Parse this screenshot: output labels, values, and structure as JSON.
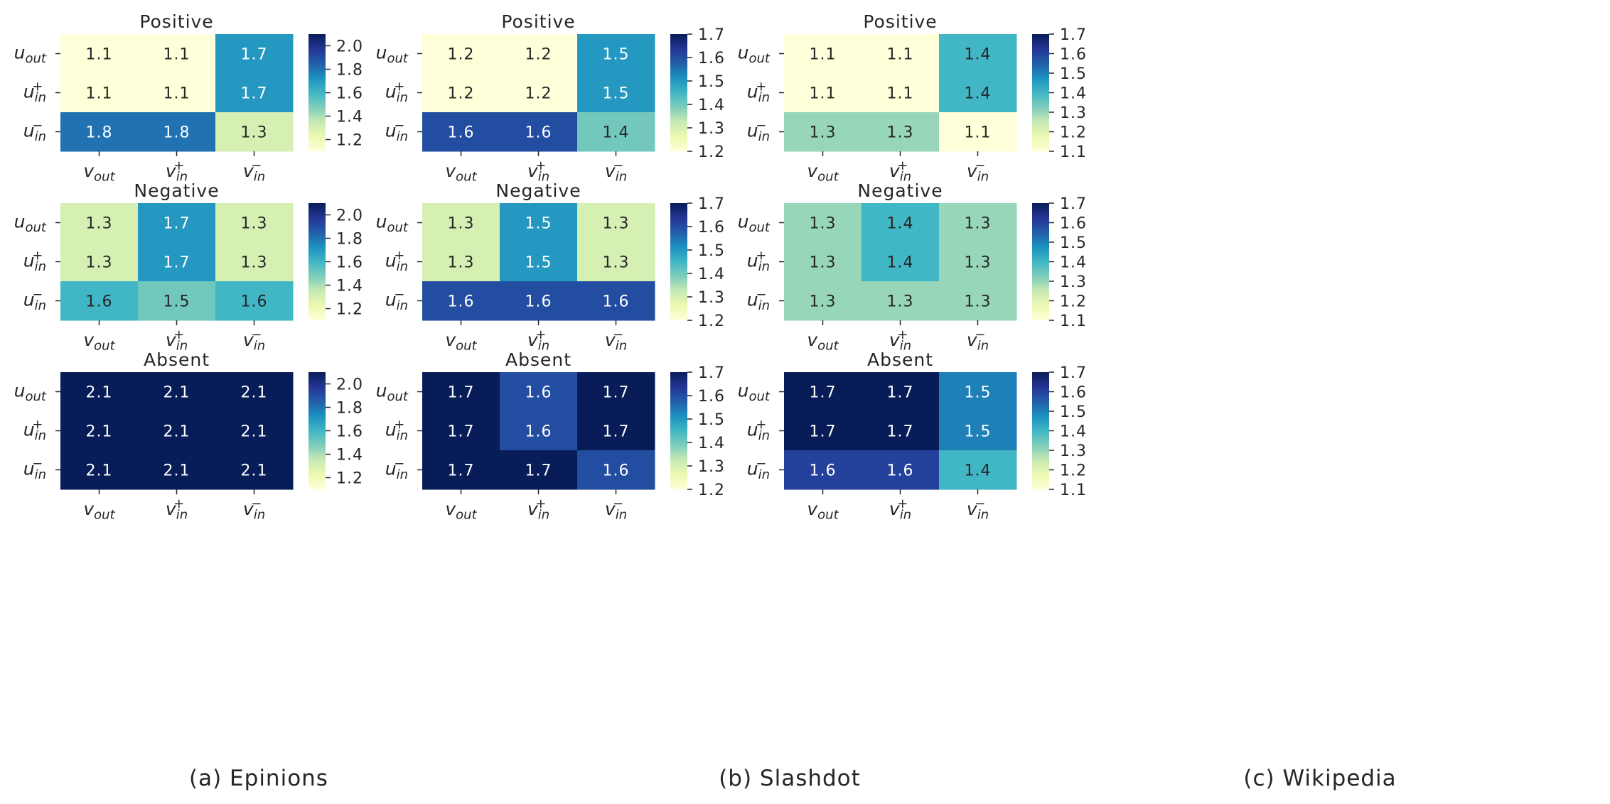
{
  "captions": [
    "(a) Epinions",
    "(b) Slashdot",
    "(c) Wikipedia"
  ],
  "chart_data": [
    {
      "type": "heatmap",
      "dataset": "Epinions",
      "title": "Positive",
      "row_labels": [
        "u_out",
        "u_in^+",
        "u_in^-"
      ],
      "col_labels": [
        "v_out",
        "v_in^+",
        "v_in^-"
      ],
      "values": [
        [
          1.1,
          1.1,
          1.7
        ],
        [
          1.1,
          1.1,
          1.7
        ],
        [
          1.8,
          1.8,
          1.3
        ]
      ],
      "colorbar": {
        "min": 1.1,
        "max": 2.1,
        "ticks": [
          1.2,
          1.4,
          1.6,
          1.8,
          2.0
        ]
      },
      "colormap": "YlGnBu"
    },
    {
      "type": "heatmap",
      "dataset": "Slashdot",
      "title": "Positive",
      "row_labels": [
        "u_out",
        "u_in^+",
        "u_in^-"
      ],
      "col_labels": [
        "v_out",
        "v_in^+",
        "v_in^-"
      ],
      "values": [
        [
          1.2,
          1.2,
          1.5
        ],
        [
          1.2,
          1.2,
          1.5
        ],
        [
          1.6,
          1.6,
          1.4
        ]
      ],
      "colorbar": {
        "min": 1.2,
        "max": 1.7,
        "ticks": [
          1.2,
          1.3,
          1.4,
          1.5,
          1.6,
          1.7
        ]
      },
      "colormap": "YlGnBu"
    },
    {
      "type": "heatmap",
      "dataset": "Wikipedia",
      "title": "Positive",
      "row_labels": [
        "u_out",
        "u_in^+",
        "u_in^-"
      ],
      "col_labels": [
        "v_out",
        "v_in^+",
        "v_in^-"
      ],
      "values": [
        [
          1.1,
          1.1,
          1.4
        ],
        [
          1.1,
          1.1,
          1.4
        ],
        [
          1.3,
          1.3,
          1.1
        ]
      ],
      "colorbar": {
        "min": 1.1,
        "max": 1.7,
        "ticks": [
          1.1,
          1.2,
          1.3,
          1.4,
          1.5,
          1.6,
          1.7
        ]
      },
      "colormap": "YlGnBu"
    },
    {
      "type": "heatmap",
      "dataset": "Epinions",
      "title": "Negative",
      "row_labels": [
        "u_out",
        "u_in^+",
        "u_in^-"
      ],
      "col_labels": [
        "v_out",
        "v_in^+",
        "v_in^-"
      ],
      "values": [
        [
          1.3,
          1.7,
          1.3
        ],
        [
          1.3,
          1.7,
          1.3
        ],
        [
          1.6,
          1.5,
          1.6
        ]
      ],
      "colorbar": {
        "min": 1.1,
        "max": 2.1,
        "ticks": [
          1.2,
          1.4,
          1.6,
          1.8,
          2.0
        ]
      },
      "colormap": "YlGnBu"
    },
    {
      "type": "heatmap",
      "dataset": "Slashdot",
      "title": "Negative",
      "row_labels": [
        "u_out",
        "u_in^+",
        "u_in^-"
      ],
      "col_labels": [
        "v_out",
        "v_in^+",
        "v_in^-"
      ],
      "values": [
        [
          1.3,
          1.5,
          1.3
        ],
        [
          1.3,
          1.5,
          1.3
        ],
        [
          1.6,
          1.6,
          1.6
        ]
      ],
      "colorbar": {
        "min": 1.2,
        "max": 1.7,
        "ticks": [
          1.2,
          1.3,
          1.4,
          1.5,
          1.6,
          1.7
        ]
      },
      "colormap": "YlGnBu"
    },
    {
      "type": "heatmap",
      "dataset": "Wikipedia",
      "title": "Negative",
      "row_labels": [
        "u_out",
        "u_in^+",
        "u_in^-"
      ],
      "col_labels": [
        "v_out",
        "v_in^+",
        "v_in^-"
      ],
      "values": [
        [
          1.3,
          1.4,
          1.3
        ],
        [
          1.3,
          1.4,
          1.3
        ],
        [
          1.3,
          1.3,
          1.3
        ]
      ],
      "colorbar": {
        "min": 1.1,
        "max": 1.7,
        "ticks": [
          1.1,
          1.2,
          1.3,
          1.4,
          1.5,
          1.6,
          1.7
        ]
      },
      "colormap": "YlGnBu"
    },
    {
      "type": "heatmap",
      "dataset": "Epinions",
      "title": "Absent",
      "row_labels": [
        "u_out",
        "u_in^+",
        "u_in^-"
      ],
      "col_labels": [
        "v_out",
        "v_in^+",
        "v_in^-"
      ],
      "values": [
        [
          2.1,
          2.1,
          2.1
        ],
        [
          2.1,
          2.1,
          2.1
        ],
        [
          2.1,
          2.1,
          2.1
        ]
      ],
      "colorbar": {
        "min": 1.1,
        "max": 2.1,
        "ticks": [
          1.2,
          1.4,
          1.6,
          1.8,
          2.0
        ]
      },
      "colormap": "YlGnBu"
    },
    {
      "type": "heatmap",
      "dataset": "Slashdot",
      "title": "Absent",
      "row_labels": [
        "u_out",
        "u_in^+",
        "u_in^-"
      ],
      "col_labels": [
        "v_out",
        "v_in^+",
        "v_in^-"
      ],
      "values": [
        [
          1.7,
          1.6,
          1.7
        ],
        [
          1.7,
          1.6,
          1.7
        ],
        [
          1.7,
          1.7,
          1.6
        ]
      ],
      "colorbar": {
        "min": 1.2,
        "max": 1.7,
        "ticks": [
          1.2,
          1.3,
          1.4,
          1.5,
          1.6,
          1.7
        ]
      },
      "colormap": "YlGnBu"
    },
    {
      "type": "heatmap",
      "dataset": "Wikipedia",
      "title": "Absent",
      "row_labels": [
        "u_out",
        "u_in^+",
        "u_in^-"
      ],
      "col_labels": [
        "v_out",
        "v_in^+",
        "v_in^-"
      ],
      "values": [
        [
          1.7,
          1.7,
          1.5
        ],
        [
          1.7,
          1.7,
          1.5
        ],
        [
          1.6,
          1.6,
          1.4
        ]
      ],
      "colorbar": {
        "min": 1.1,
        "max": 1.7,
        "ticks": [
          1.1,
          1.2,
          1.3,
          1.4,
          1.5,
          1.6,
          1.7
        ]
      },
      "colormap": "YlGnBu"
    }
  ]
}
